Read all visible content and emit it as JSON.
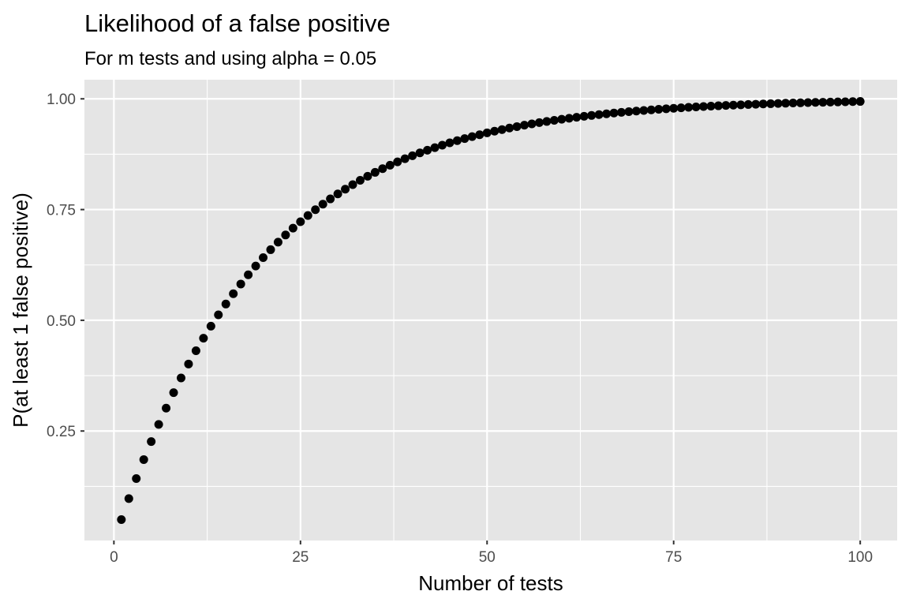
{
  "chart_data": {
    "type": "scatter",
    "title": "Likelihood of a false positive",
    "subtitle": "For m tests and using alpha = 0.05",
    "xlabel": "Number of tests",
    "ylabel": "P(at least 1 false positive)",
    "xlim": [
      -3.95,
      104.95
    ],
    "ylim": [
      0.0028,
      1.0432
    ],
    "x_ticks": [
      0,
      25,
      50,
      75,
      100
    ],
    "x_tick_labels": [
      "0",
      "25",
      "50",
      "75",
      "100"
    ],
    "y_ticks": [
      0.25,
      0.5,
      0.75,
      1.0
    ],
    "y_tick_labels": [
      "0.25",
      "0.50",
      "0.75",
      "1.00"
    ],
    "grid": true,
    "panel_color": "#e5e5e5",
    "grid_color": "#ffffff",
    "point_color": "#000000",
    "x": [
      1,
      2,
      3,
      4,
      5,
      6,
      7,
      8,
      9,
      10,
      11,
      12,
      13,
      14,
      15,
      16,
      17,
      18,
      19,
      20,
      21,
      22,
      23,
      24,
      25,
      26,
      27,
      28,
      29,
      30,
      31,
      32,
      33,
      34,
      35,
      36,
      37,
      38,
      39,
      40,
      41,
      42,
      43,
      44,
      45,
      46,
      47,
      48,
      49,
      50,
      51,
      52,
      53,
      54,
      55,
      56,
      57,
      58,
      59,
      60,
      61,
      62,
      63,
      64,
      65,
      66,
      67,
      68,
      69,
      70,
      71,
      72,
      73,
      74,
      75,
      76,
      77,
      78,
      79,
      80,
      81,
      82,
      83,
      84,
      85,
      86,
      87,
      88,
      89,
      90,
      91,
      92,
      93,
      94,
      95,
      96,
      97,
      98,
      99,
      100
    ],
    "y": [
      0.05,
      0.0975,
      0.1426,
      0.1855,
      0.2262,
      0.2649,
      0.3017,
      0.3366,
      0.3698,
      0.4013,
      0.4312,
      0.4596,
      0.4867,
      0.5123,
      0.5367,
      0.5599,
      0.5819,
      0.6028,
      0.6226,
      0.6415,
      0.6594,
      0.6765,
      0.6926,
      0.708,
      0.7226,
      0.7365,
      0.7497,
      0.7622,
      0.7741,
      0.7854,
      0.7961,
      0.8063,
      0.816,
      0.8252,
      0.834,
      0.8423,
      0.8502,
      0.8577,
      0.8648,
      0.8715,
      0.8779,
      0.884,
      0.8898,
      0.8953,
      0.9006,
      0.9055,
      0.9102,
      0.9147,
      0.919,
      0.9231,
      0.9269,
      0.9306,
      0.934,
      0.9373,
      0.9405,
      0.9434,
      0.9463,
      0.9489,
      0.9515,
      0.9539,
      0.9562,
      0.9584,
      0.9605,
      0.9625,
      0.9644,
      0.9662,
      0.9679,
      0.9695,
      0.971,
      0.9724,
      0.9738,
      0.9751,
      0.9764,
      0.9776,
      0.9787,
      0.9798,
      0.9808,
      0.9817,
      0.9826,
      0.9835,
      0.9843,
      0.9851,
      0.9858,
      0.9865,
      0.9872,
      0.9878,
      0.9884,
      0.989,
      0.9896,
      0.9901,
      0.9906,
      0.991,
      0.9915,
      0.9919,
      0.9923,
      0.9927,
      0.993,
      0.9934,
      0.9937,
      0.9941
    ]
  }
}
